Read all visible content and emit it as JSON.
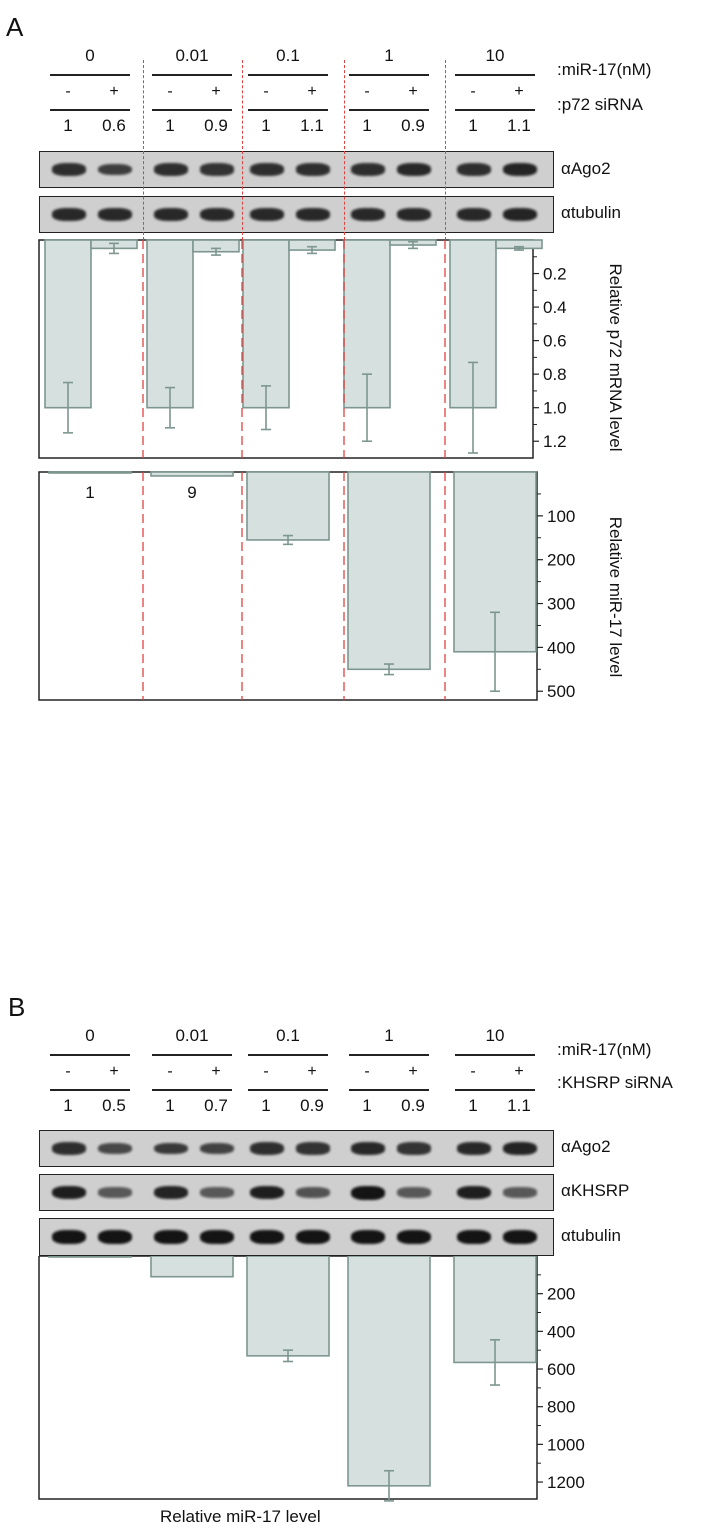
{
  "panels": [
    {
      "letter": "A",
      "top_labels": {
        "dose": ":miR-17(nM)",
        "sirna": ":p72 siRNA"
      },
      "groups": [
        "0",
        "0.01",
        "0.1",
        "1",
        "10"
      ],
      "signs": [
        "-",
        "+",
        "-",
        "+",
        "-",
        "+",
        "-",
        "+",
        "-",
        "+"
      ],
      "ratios": [
        "1",
        "0.6",
        "1",
        "0.9",
        "1",
        "1.1",
        "1",
        "0.9",
        "1",
        "1.1"
      ],
      "blots": [
        {
          "label": "αAgo2",
          "band_intensity": [
            0.75,
            0.6,
            0.75,
            0.7,
            0.75,
            0.75,
            0.75,
            0.8,
            0.75,
            0.85
          ]
        },
        {
          "label": "αtubulin",
          "band_intensity": [
            0.8,
            0.8,
            0.8,
            0.8,
            0.8,
            0.8,
            0.8,
            0.8,
            0.8,
            0.85
          ]
        }
      ]
    },
    {
      "letter": "B",
      "top_labels": {
        "dose": ":miR-17(nM)",
        "sirna": ":KHSRP siRNA"
      },
      "groups": [
        "0",
        "0.01",
        "0.1",
        "1",
        "10"
      ],
      "signs": [
        "-",
        "+",
        "-",
        "+",
        "-",
        "+",
        "-",
        "+",
        "-",
        "+"
      ],
      "ratios": [
        "1",
        "0.5",
        "1",
        "0.7",
        "1",
        "0.9",
        "1",
        "0.9",
        "1",
        "1.1"
      ],
      "blots": [
        {
          "label": "αAgo2",
          "band_intensity": [
            0.75,
            0.5,
            0.65,
            0.55,
            0.75,
            0.7,
            0.8,
            0.7,
            0.8,
            0.85
          ]
        },
        {
          "label": "αKHSRP",
          "band_intensity": [
            0.9,
            0.35,
            0.85,
            0.35,
            0.9,
            0.4,
            1.0,
            0.35,
            0.9,
            0.35
          ]
        },
        {
          "label": "αtubulin",
          "band_intensity": [
            1,
            1,
            1,
            1,
            1,
            1,
            1,
            1,
            1,
            1
          ]
        }
      ]
    }
  ],
  "chart_data": [
    {
      "type": "bar",
      "panel": "A",
      "orientation": "downward",
      "ylabel": "Relative p72 mRNA level",
      "ylim": [
        0,
        1.3
      ],
      "yticks": [
        "0.2",
        "0.4",
        "0.6",
        "0.8",
        "1.0",
        "1.2"
      ],
      "categories": [
        "0 -",
        "0 +",
        "0.01 -",
        "0.01 +",
        "0.1 -",
        "0.1 +",
        "1 -",
        "1 +",
        "10 -",
        "10 +"
      ],
      "values": [
        1.0,
        0.05,
        1.0,
        0.07,
        1.0,
        0.06,
        1.0,
        0.03,
        1.0,
        0.05
      ],
      "errors": [
        0.15,
        0.03,
        0.12,
        0.02,
        0.13,
        0.02,
        0.2,
        0.02,
        0.27,
        0.01
      ],
      "fill": "#d6e0de",
      "stroke": "#7d9690"
    },
    {
      "type": "bar",
      "panel": "A",
      "orientation": "downward",
      "ylabel": "Relative miR-17 level",
      "ylim": [
        0,
        520
      ],
      "yticks": [
        "100",
        "200",
        "300",
        "400",
        "500"
      ],
      "categories": [
        "0",
        "0.01",
        "0.1",
        "1",
        "10"
      ],
      "values": [
        1,
        9,
        155,
        450,
        410
      ],
      "errors": [
        0,
        0,
        10,
        12,
        90
      ],
      "data_labels": [
        "1",
        "9",
        "",
        "",
        ""
      ],
      "fill": "#d6e0de",
      "stroke": "#7d9690"
    },
    {
      "type": "bar",
      "panel": "B",
      "orientation": "downward",
      "xlabel": "Relative miR-17 level",
      "ylim": [
        0,
        1290
      ],
      "yticks": [
        "200",
        "400",
        "600",
        "800",
        "1000",
        "1200"
      ],
      "categories": [
        "0",
        "0.01",
        "0.1",
        "1",
        "10"
      ],
      "values": [
        1,
        110,
        530,
        1220,
        565
      ],
      "errors": [
        0,
        0,
        30,
        80,
        120
      ],
      "fill": "#d6e0de",
      "stroke": "#7d9690"
    }
  ]
}
